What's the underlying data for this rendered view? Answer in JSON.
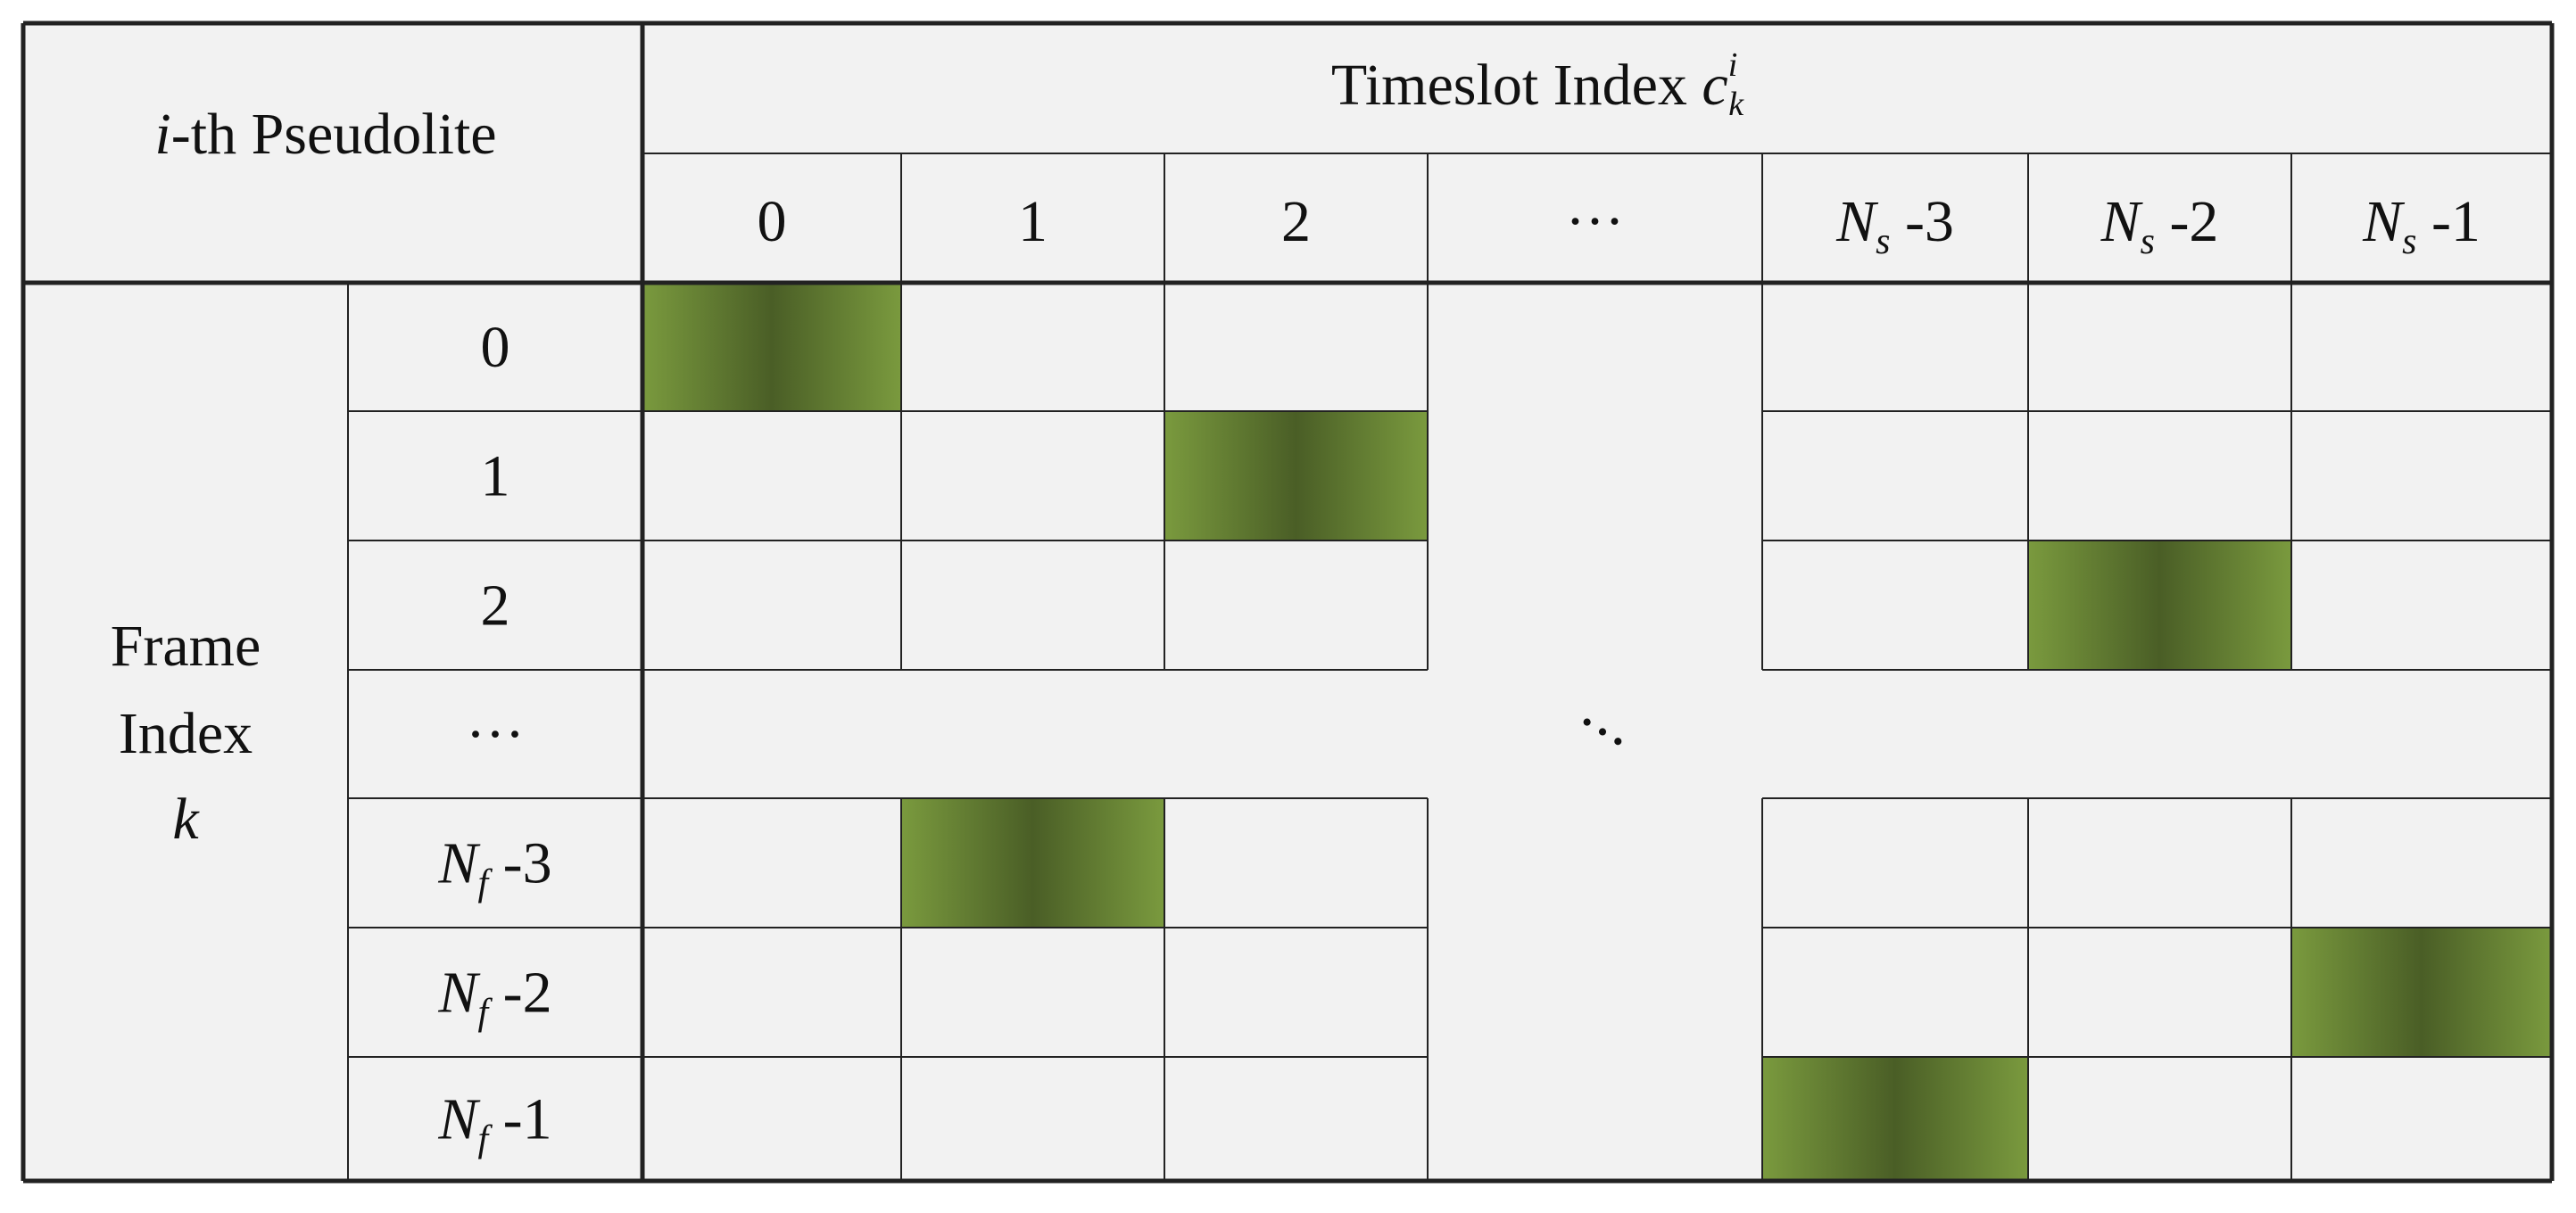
{
  "header": {
    "pseudolite_italic": "i",
    "pseudolite_rest": "-th Pseudolite",
    "timeslot_label": "Timeslot Index ",
    "timeslot_symbol": "c",
    "timeslot_sup": "i",
    "timeslot_sub": "k",
    "frame_line1": "Frame",
    "frame_line2": "Index",
    "frame_symbol": "k"
  },
  "columns": [
    {
      "text": "0"
    },
    {
      "text": "1"
    },
    {
      "text": "2"
    },
    {
      "text": "···"
    },
    {
      "sym": "N",
      "sub": "s",
      "suffix": " -3"
    },
    {
      "sym": "N",
      "sub": "s",
      "suffix": " -2"
    },
    {
      "sym": "N",
      "sub": "s",
      "suffix": " -1"
    }
  ],
  "rows": [
    {
      "text": "0"
    },
    {
      "text": "1"
    },
    {
      "text": "2"
    },
    {
      "text": "···"
    },
    {
      "sym": "N",
      "sub": "f",
      "suffix": " -3"
    },
    {
      "sym": "N",
      "sub": "f",
      "suffix": " -2"
    },
    {
      "sym": "N",
      "sub": "f",
      "suffix": " -1"
    }
  ],
  "ellipsis_row_index": 3,
  "ellipsis_col_index": 3,
  "diag_dots": "•  •  •",
  "assignments": [
    {
      "row": 0,
      "col": 0
    },
    {
      "row": 1,
      "col": 2
    },
    {
      "row": 2,
      "col": 5
    },
    {
      "row": 4,
      "col": 1
    },
    {
      "row": 5,
      "col": 6
    },
    {
      "row": 6,
      "col": 4
    }
  ],
  "colors": {
    "cell_bg": "#f2f2f2",
    "line": "#222222",
    "slot_dark": "#4a5e26",
    "slot_light": "#7a9a3e"
  }
}
